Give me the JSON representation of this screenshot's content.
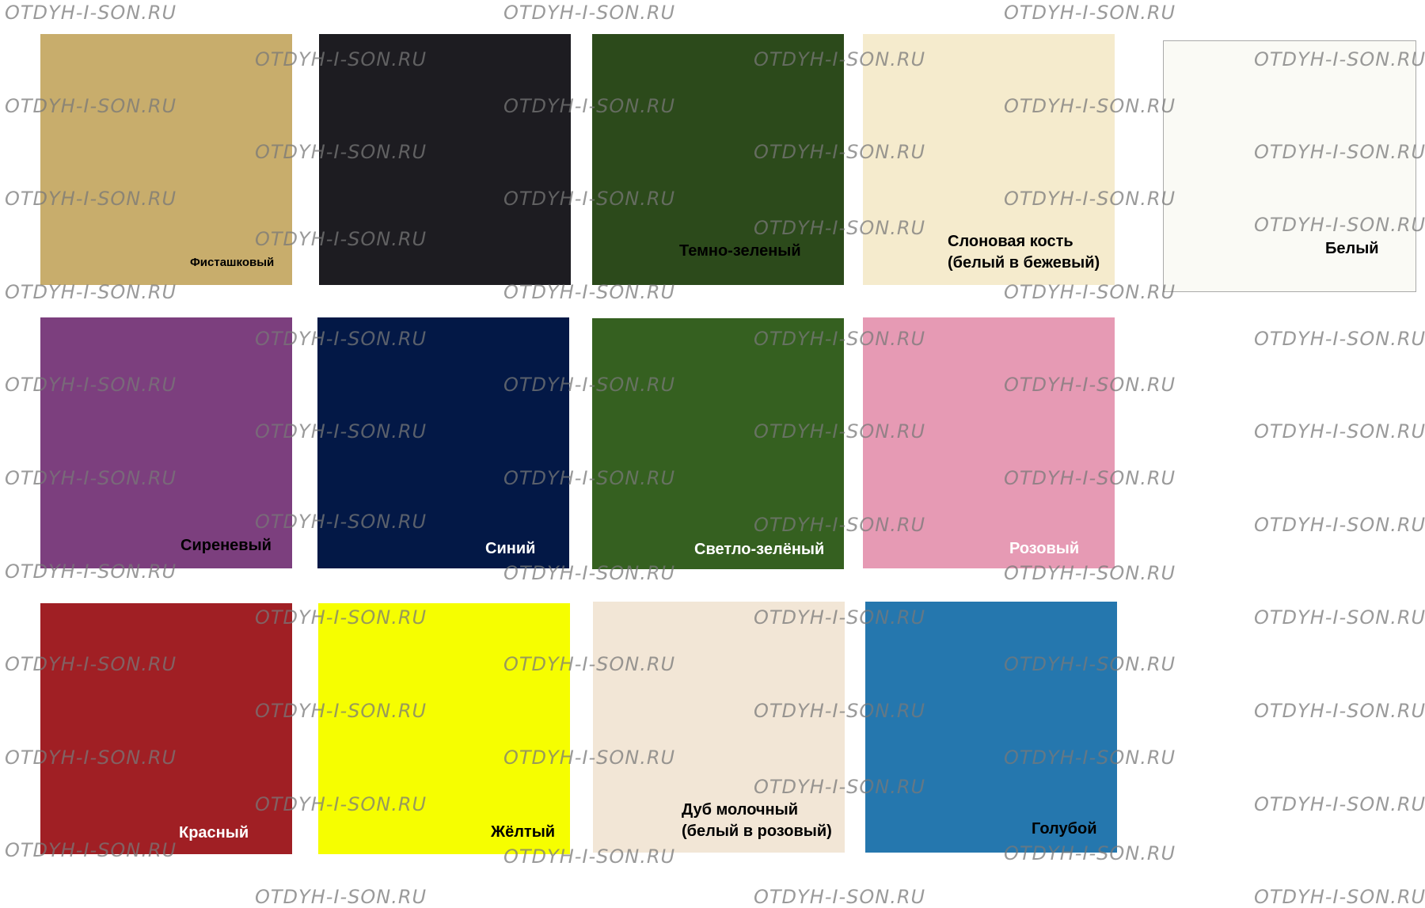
{
  "watermark": "OTDYH-I-SON.RU",
  "swatches": [
    {
      "label": "Фисташковый",
      "color": "#c8ad6c",
      "text_color": "#000000"
    },
    {
      "label": "",
      "color": "#1d1c21",
      "text_color": "#ffffff"
    },
    {
      "label": "Темно-зеленый",
      "color": "#2c4a1b",
      "text_color": "#000000"
    },
    {
      "label": "Слоновая кость\n(белый в бежевый)",
      "color": "#f5ebcd",
      "text_color": "#000000"
    },
    {
      "label": "Белый",
      "color": "#fafaf5",
      "text_color": "#000000"
    },
    {
      "label": "Сиреневый",
      "color": "#7c3f7e",
      "text_color": "#000000"
    },
    {
      "label": "Синий",
      "color": "#031846",
      "text_color": "#ffffff"
    },
    {
      "label": "Светло-зелёный",
      "color": "#356020",
      "text_color": "#ffffff"
    },
    {
      "label": "Розовый",
      "color": "#e69ab4",
      "text_color": "#ffffff"
    },
    {
      "label": "Красный",
      "color": "#a01f24",
      "text_color": "#ffffff"
    },
    {
      "label": "Жёлтый",
      "color": "#f6fe00",
      "text_color": "#000000"
    },
    {
      "label": "Дуб молочный\n(белый в розовый)",
      "color": "#f2e6d6",
      "text_color": "#000000"
    },
    {
      "label": "Голубой",
      "color": "#2577ae",
      "text_color": "#000000"
    }
  ]
}
